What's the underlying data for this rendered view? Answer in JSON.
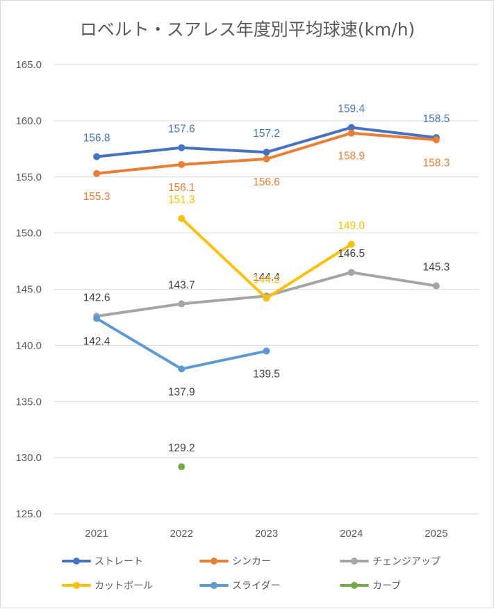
{
  "chart_data": {
    "type": "line",
    "title": "ロベルト・スアレス年度別平均球速(km/h)",
    "xlabel": "",
    "ylabel": "",
    "categories": [
      "2021",
      "2022",
      "2023",
      "2024",
      "2025"
    ],
    "ylim": [
      125.0,
      165.0
    ],
    "yticks": [
      "125.0",
      "130.0",
      "135.0",
      "140.0",
      "145.0",
      "150.0",
      "155.0",
      "160.0",
      "165.0"
    ],
    "grid": true,
    "legend_position": "bottom",
    "series": [
      {
        "name": "ストレート",
        "color": "#4472C4",
        "values": [
          156.8,
          157.6,
          157.2,
          159.4,
          158.5
        ],
        "labels": [
          "156.8",
          "157.6",
          "157.2",
          "159.4",
          "158.5"
        ],
        "label_pos": [
          "above",
          "above",
          "above",
          "above",
          "above"
        ]
      },
      {
        "name": "シンカー",
        "color": "#ED7D31",
        "values": [
          155.3,
          156.1,
          156.6,
          158.9,
          158.3
        ],
        "labels": [
          "155.3",
          "156.1",
          "156.6",
          "158.9",
          "158.3"
        ],
        "label_pos": [
          "below",
          "below",
          "below",
          "below",
          "below"
        ]
      },
      {
        "name": "チェンジアップ",
        "color": "#A5A5A5",
        "values": [
          142.6,
          143.7,
          144.4,
          146.5,
          145.3
        ],
        "labels": [
          "142.6",
          "143.7",
          "144.4",
          "146.5",
          "145.3"
        ],
        "label_pos": [
          "above",
          "above",
          "above",
          "above",
          "above"
        ]
      },
      {
        "name": "カットボール",
        "color": "#FFC000",
        "values": [
          null,
          151.3,
          144.2,
          149.0,
          null
        ],
        "labels": [
          null,
          "151.3",
          "144.2",
          "149.0",
          null
        ],
        "label_pos": [
          null,
          "above",
          "above",
          "above",
          null
        ]
      },
      {
        "name": "スライダー",
        "color": "#5B9BD5",
        "values": [
          142.4,
          137.9,
          139.5,
          null,
          null
        ],
        "labels": [
          "142.4",
          "137.9",
          "139.5",
          null,
          null
        ],
        "label_pos": [
          "below",
          "below",
          "below",
          null,
          null
        ]
      },
      {
        "name": "カーブ",
        "color": "#70AD47",
        "values": [
          null,
          129.2,
          null,
          null,
          null
        ],
        "labels": [
          null,
          "129.2",
          null,
          null,
          null
        ],
        "label_pos": [
          null,
          "above",
          null,
          null,
          null
        ]
      }
    ]
  }
}
